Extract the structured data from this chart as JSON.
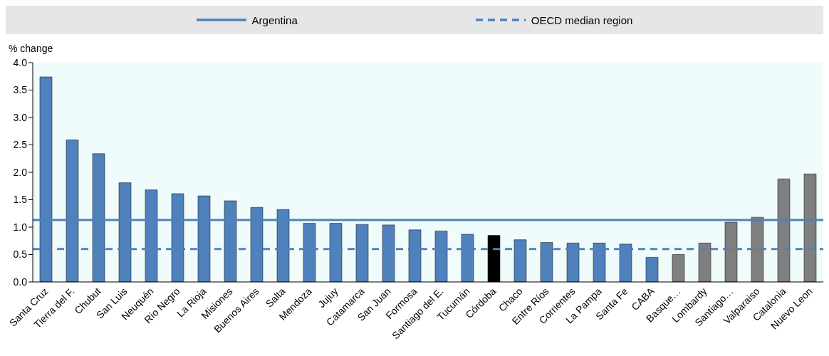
{
  "chart_data": {
    "type": "bar",
    "ylabel": "% change",
    "categories": [
      "Santa Cruz",
      "Tierra del F.",
      "Chubut",
      "San Luis",
      "Neuquén",
      "Río Negro",
      "La Rioja",
      "Misiones",
      "Buenos Aires",
      "Salta",
      "Mendoza",
      "Jujuy",
      "Catamarca",
      "San Juan",
      "Formosa",
      "Santiago del E.",
      "Tucumán",
      "Córdoba",
      "Chaco",
      "Entre Ríos",
      "Corrientes",
      "La Pampa",
      "Santa Fe",
      "CABA",
      "Basque…",
      "Lombardy",
      "Santiago…",
      "Valparaiso",
      "Catalonia",
      "Nuevo Leon"
    ],
    "values": [
      3.74,
      2.59,
      2.34,
      1.81,
      1.68,
      1.61,
      1.57,
      1.48,
      1.36,
      1.32,
      1.07,
      1.07,
      1.05,
      1.04,
      0.95,
      0.93,
      0.87,
      0.85,
      0.77,
      0.72,
      0.71,
      0.71,
      0.69,
      0.45,
      0.5,
      0.71,
      1.09,
      1.18,
      1.88,
      1.97
    ],
    "colors": [
      "#4f81bd",
      "#4f81bd",
      "#4f81bd",
      "#4f81bd",
      "#4f81bd",
      "#4f81bd",
      "#4f81bd",
      "#4f81bd",
      "#4f81bd",
      "#4f81bd",
      "#4f81bd",
      "#4f81bd",
      "#4f81bd",
      "#4f81bd",
      "#4f81bd",
      "#4f81bd",
      "#4f81bd",
      "#000000",
      "#4f81bd",
      "#4f81bd",
      "#4f81bd",
      "#4f81bd",
      "#4f81bd",
      "#4f81bd",
      "#7f7f7f",
      "#7f7f7f",
      "#7f7f7f",
      "#7f7f7f",
      "#7f7f7f",
      "#7f7f7f"
    ],
    "ylim": [
      0,
      4
    ],
    "yticks": [
      {
        "value": 0,
        "label": "0.0"
      },
      {
        "value": 0.5,
        "label": "0.5"
      },
      {
        "value": 1,
        "label": "1.0"
      },
      {
        "value": 1.5,
        "label": "1.5"
      },
      {
        "value": 2,
        "label": "2.0"
      },
      {
        "value": 2.5,
        "label": "2.5"
      },
      {
        "value": 3,
        "label": "3.0"
      },
      {
        "value": 3.5,
        "label": "3.5"
      },
      {
        "value": 4,
        "label": "4.0"
      }
    ],
    "ref_lines": [
      {
        "axis": "y",
        "value": 1.13,
        "label": "Argentina",
        "color": "#4f81bd",
        "line_style": "solid"
      },
      {
        "axis": "y",
        "value": 0.6,
        "label": "OECD median region",
        "color": "#4f81bd",
        "line_style": "dashed"
      }
    ],
    "grid": false,
    "legend": "top"
  }
}
